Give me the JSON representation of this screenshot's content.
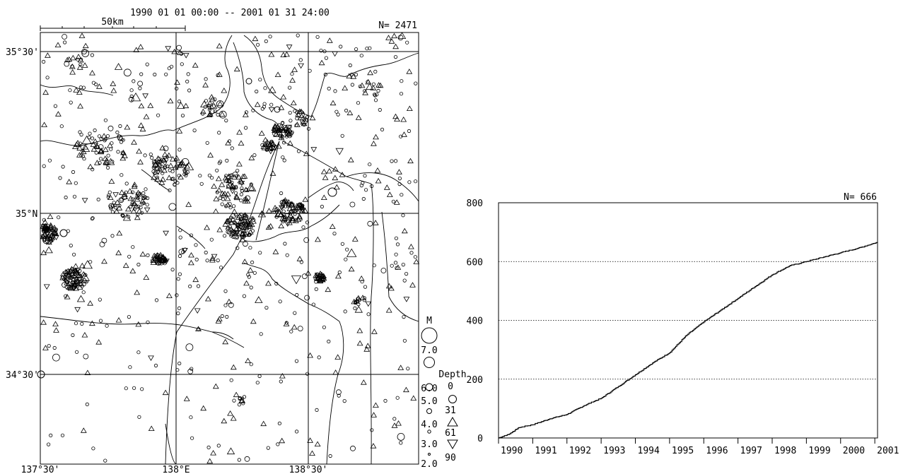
{
  "map": {
    "title": "1990 01 01 00:00 -- 2001 01 31 24:00",
    "scale_label": "50km",
    "count_label": "N= 2471",
    "lat_labels": [
      "35°30'",
      "35°N",
      "34°30'"
    ],
    "lon_labels": [
      "137°30'",
      "138°E",
      "138°30'"
    ],
    "legend": {
      "magnitude_title": "M",
      "magnitudes": [
        "7.0",
        "6.0",
        "5.0",
        "4.0",
        "3.0",
        "2.0"
      ],
      "depth_title": "Depth",
      "depths": [
        "0",
        "31",
        "61",
        "90"
      ]
    }
  },
  "chart_data": {
    "type": "line",
    "count_label": "N= 666",
    "x_ticks": [
      "1990",
      "1991",
      "1992",
      "1993",
      "1994",
      "1995",
      "1996",
      "1997",
      "1998",
      "1999",
      "2000",
      "2001"
    ],
    "y_ticks": [
      "0",
      "200",
      "400",
      "600",
      "800"
    ],
    "ylim": [
      0,
      800
    ],
    "xlim": [
      1990,
      2001.08
    ],
    "grid": "horizontal dotted at 200, 400, 600",
    "series": [
      {
        "x": [
          1990.0,
          1990.3,
          1990.6,
          1991.0,
          1991.5,
          1992.0,
          1992.5,
          1993.0,
          1993.5,
          1994.0,
          1994.5,
          1995.0,
          1995.5,
          1996.0,
          1996.5,
          1997.0,
          1997.5,
          1998.0,
          1998.5,
          1999.0,
          1999.5,
          2000.0,
          2000.5,
          2001.08
        ],
        "y": [
          0,
          12,
          35,
          45,
          65,
          80,
          110,
          135,
          175,
          215,
          255,
          290,
          350,
          395,
          435,
          475,
          515,
          555,
          585,
          600,
          615,
          630,
          645,
          666
        ]
      }
    ]
  }
}
